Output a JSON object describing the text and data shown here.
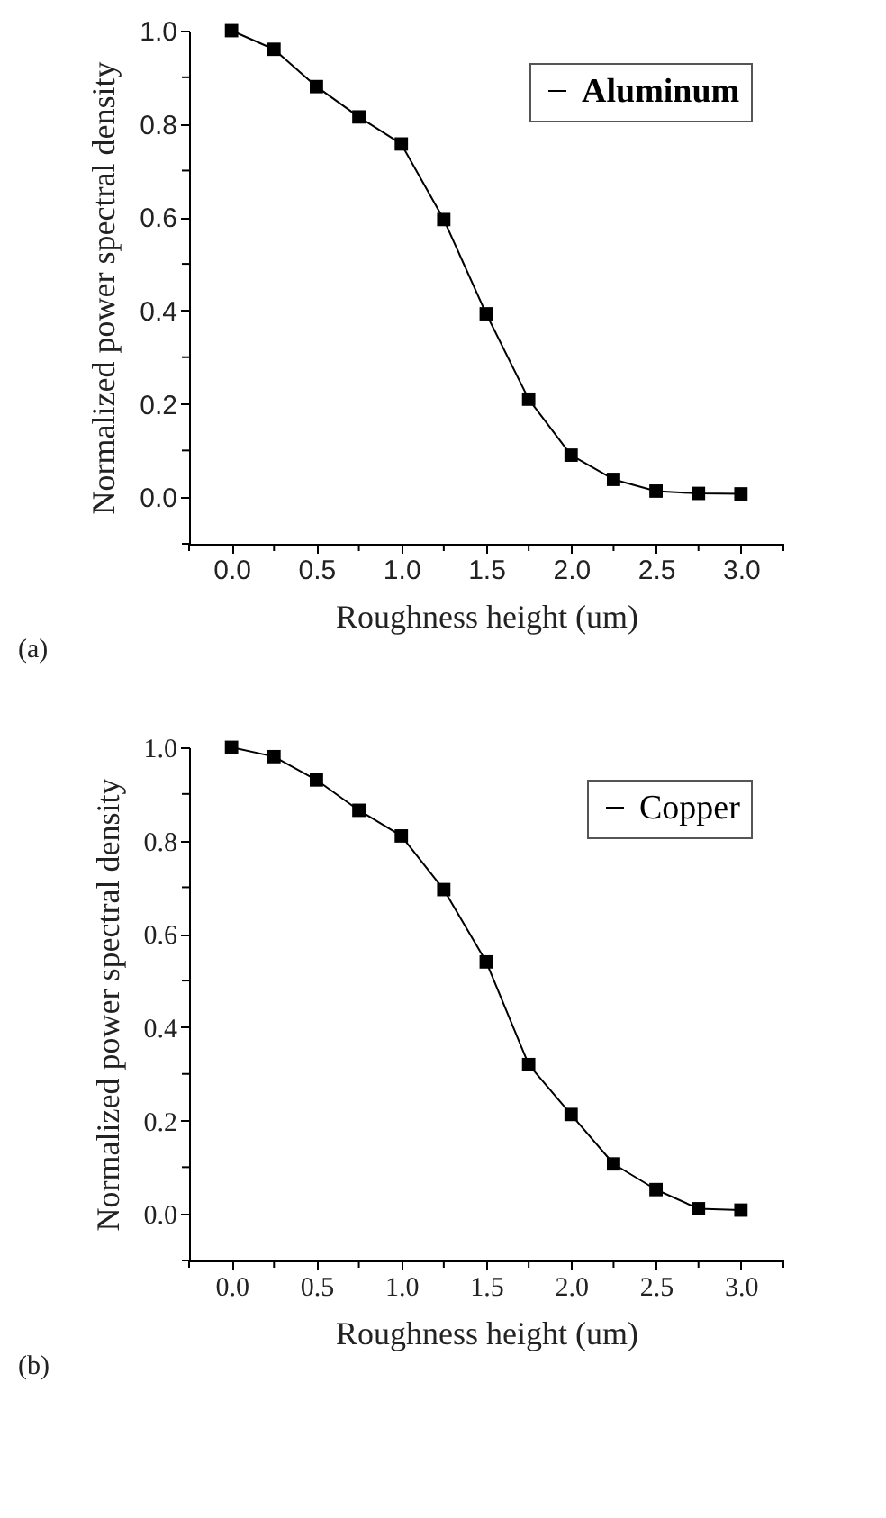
{
  "chart_data": [
    {
      "type": "line",
      "xlabel": "Roughness height (um)",
      "ylabel": "Normalized power spectral density",
      "annotations": [
        "(a)"
      ],
      "x": [
        0,
        0.25,
        0.5,
        0.75,
        1.0,
        1.25,
        1.5,
        1.75,
        2.0,
        2.25,
        2.5,
        2.75,
        3.0
      ],
      "series": [
        {
          "name": "Aluminum",
          "color": "#000000",
          "values": [
            1.0,
            0.96,
            0.88,
            0.815,
            0.757,
            0.595,
            0.393,
            0.21,
            0.09,
            0.038,
            0.013,
            0.008,
            0.007
          ]
        }
      ],
      "xlim": [
        -0.25,
        3.25
      ],
      "ylim": [
        -0.1,
        1.0
      ],
      "xticks": [
        {
          "value": -0.25,
          "label": null
        },
        "0.0",
        {
          "value": 0.25,
          "label": null
        },
        0.5,
        {
          "value": 0.75,
          "label": null
        },
        "1.0",
        {
          "value": 1.25,
          "label": null
        },
        1.5,
        {
          "value": 1.75,
          "label": null
        },
        "2.0",
        {
          "value": 2.25,
          "label": null
        },
        2.5,
        {
          "value": 2.75,
          "label": null
        },
        "3.0",
        {
          "value": 3.25,
          "label": null
        }
      ],
      "yticks": [
        {
          "value": -0.1,
          "label": null
        },
        "0.0",
        {
          "value": 0.1,
          "label": null
        },
        0.2,
        {
          "value": 0.3,
          "label": null
        },
        0.4,
        {
          "value": 0.5,
          "label": null
        },
        0.6,
        {
          "value": 0.7,
          "label": null
        },
        0.8,
        {
          "value": 0.9,
          "label": null
        },
        "1.0"
      ],
      "grid": false,
      "legend": "top right",
      "marker": "square",
      "line_style": "solid"
    },
    {
      "type": "line",
      "xlabel": "Roughness height  (um)",
      "ylabel": "Normalized power spectral density",
      "annotations": [
        "(b)"
      ],
      "x": [
        0,
        0.25,
        0.5,
        0.75,
        1.0,
        1.25,
        1.5,
        1.75,
        2.0,
        2.25,
        2.5,
        2.75,
        3.0
      ],
      "series": [
        {
          "name": "Copper",
          "color": "#000000",
          "values": [
            1.0,
            0.98,
            0.93,
            0.865,
            0.81,
            0.695,
            0.54,
            0.32,
            0.213,
            0.107,
            0.052,
            0.011,
            0.008
          ]
        }
      ],
      "xlim": [
        -0.25,
        3.25
      ],
      "ylim": [
        -0.1,
        1.0
      ],
      "xticks": [
        {
          "value": -0.25,
          "label": null
        },
        "0.0",
        {
          "value": 0.25,
          "label": null
        },
        0.5,
        {
          "value": 0.75,
          "label": null
        },
        "1.0",
        {
          "value": 1.25,
          "label": null
        },
        1.5,
        {
          "value": 1.75,
          "label": null
        },
        "2.0",
        {
          "value": 2.25,
          "label": null
        },
        2.5,
        {
          "value": 2.75,
          "label": null
        },
        "3.0",
        {
          "value": 3.25,
          "label": null
        }
      ],
      "yticks": [
        {
          "value": -0.1,
          "label": null
        },
        "0.0",
        {
          "value": 0.1,
          "label": null
        },
        0.2,
        {
          "value": 0.3,
          "label": null
        },
        0.4,
        {
          "value": 0.5,
          "label": null
        },
        0.6,
        {
          "value": 0.7,
          "label": null
        },
        0.8,
        {
          "value": 0.9,
          "label": null
        },
        "1.0"
      ],
      "grid": false,
      "legend": "top right",
      "marker": "square",
      "line_style": "solid"
    }
  ]
}
